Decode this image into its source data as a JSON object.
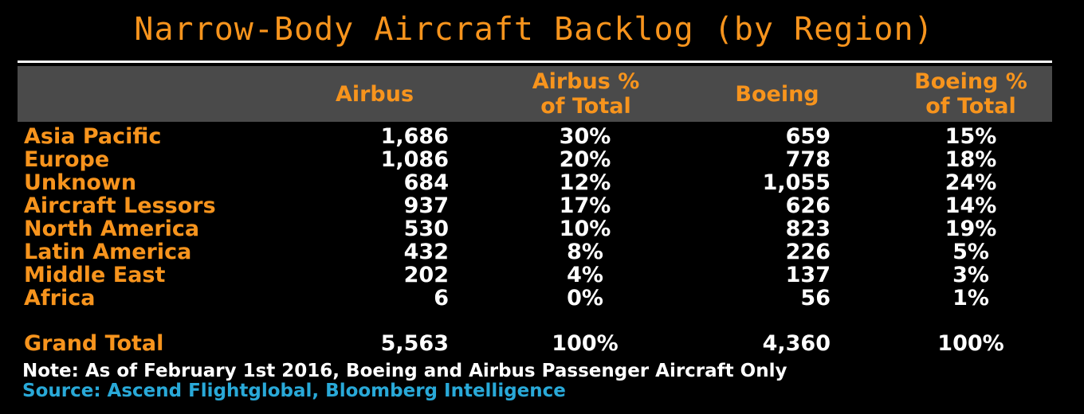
{
  "colors": {
    "accent": "#f7941d",
    "source": "#29a9d8",
    "header_bg": "#4a4a4a",
    "text": "#ffffff"
  },
  "chart_data": {
    "type": "table",
    "title": "Narrow-Body Aircraft Backlog (by Region)",
    "columns": [
      "",
      "Airbus",
      "Airbus %\nof Total",
      "Boeing",
      "Boeing %\nof Total"
    ],
    "rows": [
      {
        "region": "Asia Pacific",
        "airbus": "1,686",
        "airbus_pct": "30%",
        "boeing": "659",
        "boeing_pct": "15%"
      },
      {
        "region": "Europe",
        "airbus": "1,086",
        "airbus_pct": "20%",
        "boeing": "778",
        "boeing_pct": "18%"
      },
      {
        "region": "Unknown",
        "airbus": "684",
        "airbus_pct": "12%",
        "boeing": "1,055",
        "boeing_pct": "24%"
      },
      {
        "region": "Aircraft Lessors",
        "airbus": "937",
        "airbus_pct": "17%",
        "boeing": "626",
        "boeing_pct": "14%"
      },
      {
        "region": "North America",
        "airbus": "530",
        "airbus_pct": "10%",
        "boeing": "823",
        "boeing_pct": "19%"
      },
      {
        "region": "Latin America",
        "airbus": "432",
        "airbus_pct": "8%",
        "boeing": "226",
        "boeing_pct": "5%"
      },
      {
        "region": "Middle East",
        "airbus": "202",
        "airbus_pct": "4%",
        "boeing": "137",
        "boeing_pct": "3%"
      },
      {
        "region": "Africa",
        "airbus": "6",
        "airbus_pct": "0%",
        "boeing": "56",
        "boeing_pct": "1%"
      }
    ],
    "total": {
      "region": "Grand Total",
      "airbus": "5,563",
      "airbus_pct": "100%",
      "boeing": "4,360",
      "boeing_pct": "100%"
    },
    "note": "Note: As of February 1st 2016, Boeing and Airbus Passenger Aircraft Only",
    "source": "Source: Ascend Flightglobal, Bloomberg Intelligence"
  }
}
